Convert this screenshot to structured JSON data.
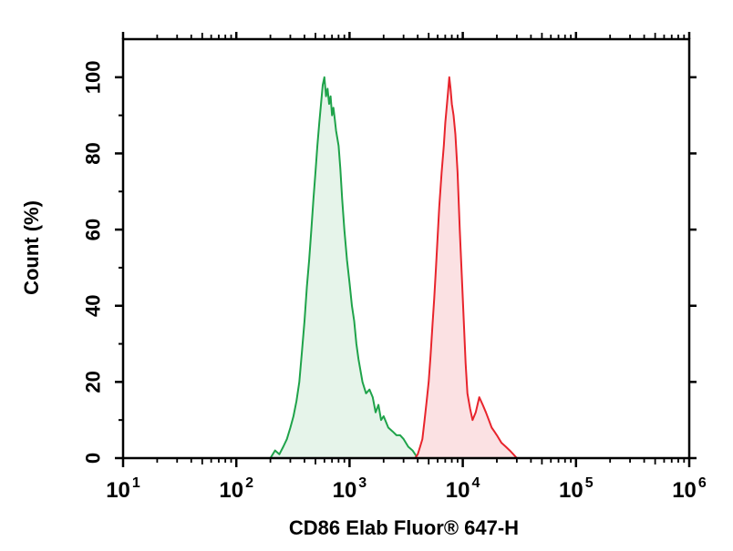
{
  "chart_data": {
    "type": "area",
    "xlabel": "CD86 Elab Fluor® 647-H",
    "ylabel": "Count (%)",
    "x_scale": "log",
    "xlim": [
      10,
      1000000
    ],
    "ylim": [
      0,
      110
    ],
    "grid": false,
    "x_ticks": [
      {
        "value": 10,
        "base": "10",
        "exp": "1"
      },
      {
        "value": 100,
        "base": "10",
        "exp": "2"
      },
      {
        "value": 1000,
        "base": "10",
        "exp": "3"
      },
      {
        "value": 10000,
        "base": "10",
        "exp": "4"
      },
      {
        "value": 100000,
        "base": "10",
        "exp": "5"
      },
      {
        "value": 1000000,
        "base": "10",
        "exp": "6"
      }
    ],
    "y_ticks": [
      {
        "value": 0,
        "label": "0"
      },
      {
        "value": 20,
        "label": "20"
      },
      {
        "value": 40,
        "label": "40"
      },
      {
        "value": 60,
        "label": "60"
      },
      {
        "value": 80,
        "label": "80"
      },
      {
        "value": 100,
        "label": "100"
      }
    ],
    "series": [
      {
        "color": "#1fa34a",
        "fill": "#e6f4ea",
        "points": [
          [
            200,
            0
          ],
          [
            220,
            2
          ],
          [
            240,
            1
          ],
          [
            260,
            3
          ],
          [
            280,
            5
          ],
          [
            300,
            8
          ],
          [
            320,
            11
          ],
          [
            340,
            15
          ],
          [
            360,
            20
          ],
          [
            380,
            28
          ],
          [
            400,
            36
          ],
          [
            420,
            45
          ],
          [
            440,
            52
          ],
          [
            460,
            60
          ],
          [
            480,
            68
          ],
          [
            500,
            75
          ],
          [
            520,
            82
          ],
          [
            540,
            88
          ],
          [
            560,
            93
          ],
          [
            580,
            98
          ],
          [
            600,
            100
          ],
          [
            620,
            95
          ],
          [
            640,
            97
          ],
          [
            660,
            93
          ],
          [
            680,
            95
          ],
          [
            700,
            90
          ],
          [
            720,
            92
          ],
          [
            740,
            89
          ],
          [
            760,
            86
          ],
          [
            800,
            82
          ],
          [
            830,
            76
          ],
          [
            860,
            68
          ],
          [
            900,
            60
          ],
          [
            950,
            52
          ],
          [
            1000,
            46
          ],
          [
            1050,
            40
          ],
          [
            1100,
            36
          ],
          [
            1150,
            30
          ],
          [
            1200,
            26
          ],
          [
            1300,
            20
          ],
          [
            1400,
            17
          ],
          [
            1500,
            18
          ],
          [
            1600,
            16
          ],
          [
            1700,
            12
          ],
          [
            1800,
            14
          ],
          [
            1900,
            10
          ],
          [
            2000,
            11
          ],
          [
            2200,
            8
          ],
          [
            2400,
            7
          ],
          [
            2600,
            6
          ],
          [
            2800,
            6
          ],
          [
            3000,
            5
          ],
          [
            3300,
            3
          ],
          [
            3600,
            2
          ],
          [
            4000,
            0
          ]
        ]
      },
      {
        "color": "#e8242c",
        "fill": "#fbe1e3",
        "points": [
          [
            3800,
            0
          ],
          [
            4000,
            1
          ],
          [
            4200,
            3
          ],
          [
            4400,
            5
          ],
          [
            4600,
            10
          ],
          [
            4800,
            15
          ],
          [
            5000,
            20
          ],
          [
            5200,
            27
          ],
          [
            5400,
            35
          ],
          [
            5600,
            42
          ],
          [
            5800,
            50
          ],
          [
            6000,
            58
          ],
          [
            6200,
            66
          ],
          [
            6500,
            75
          ],
          [
            6800,
            82
          ],
          [
            7000,
            88
          ],
          [
            7200,
            92
          ],
          [
            7400,
            96
          ],
          [
            7600,
            100
          ],
          [
            7800,
            97
          ],
          [
            8000,
            93
          ],
          [
            8300,
            90
          ],
          [
            8600,
            85
          ],
          [
            9000,
            75
          ],
          [
            9400,
            60
          ],
          [
            9800,
            48
          ],
          [
            10200,
            36
          ],
          [
            10600,
            25
          ],
          [
            11000,
            17
          ],
          [
            11600,
            13
          ],
          [
            12200,
            10
          ],
          [
            13000,
            12
          ],
          [
            14000,
            16
          ],
          [
            15000,
            14
          ],
          [
            16000,
            12
          ],
          [
            17000,
            10
          ],
          [
            18000,
            8
          ],
          [
            19000,
            7
          ],
          [
            20000,
            6
          ],
          [
            22000,
            4
          ],
          [
            24000,
            3
          ],
          [
            26000,
            2
          ],
          [
            28000,
            1
          ],
          [
            30000,
            0
          ]
        ]
      }
    ]
  }
}
